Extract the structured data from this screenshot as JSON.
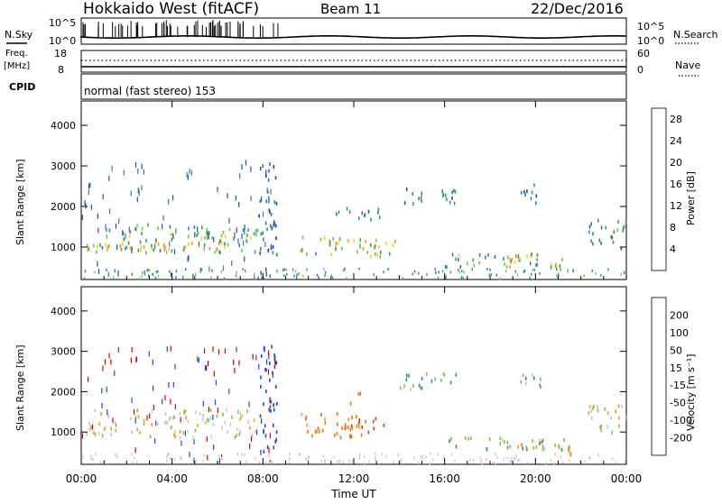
{
  "header": {
    "station": "Hokkaido West (fitACF)",
    "beam": "Beam 11",
    "date": "22/Dec/2016"
  },
  "top_panels": {
    "nsky_label": "N.Sky",
    "nsearch_label": "N.Search",
    "nsky_ticks": [
      "10^5",
      "10^0"
    ],
    "nsearch_ticks": [
      "10^5",
      "10^0"
    ],
    "freq_label_line1": "Freq.",
    "freq_label_line2": "[MHz]",
    "freq_ticks": [
      "18",
      "8"
    ],
    "nave_label": "Nave",
    "nave_ticks": [
      "60",
      "0"
    ],
    "cpid_label": "CPID",
    "cpid_text": "normal (fast stereo) 153"
  },
  "chart_data": [
    {
      "type": "heatmap",
      "name": "power",
      "xlabel": "Time UT",
      "ylabel": "Slant Range [km]",
      "x_ticks": [
        "00:00",
        "04:00",
        "08:00",
        "12:00",
        "16:00",
        "20:00",
        "00:00"
      ],
      "y_ticks": [
        1000,
        2000,
        3000,
        4000
      ],
      "ylim": [
        200,
        4600
      ],
      "xlim_hours": [
        0,
        24
      ],
      "colorbar": {
        "label": "Power [dB]",
        "ticks": [
          4,
          8,
          12,
          16,
          20,
          24,
          28
        ],
        "colors": [
          "#1030ff",
          "#1f4fb0",
          "#3a7aa0",
          "#3a9a70",
          "#7fc050",
          "#f0d020",
          "#f0a020",
          "#f07010",
          "#e04010",
          "#e00000"
        ]
      },
      "regions": [
        {
          "t0": 0.2,
          "t1": 7.8,
          "r0": 900,
          "r1": 1600,
          "level": 12
        },
        {
          "t0": 1.0,
          "t1": 6.5,
          "r0": 950,
          "r1": 1150,
          "level": 18
        },
        {
          "t0": 9.6,
          "t1": 13.8,
          "r0": 800,
          "r1": 1300,
          "level": 14
        },
        {
          "t0": 11.0,
          "t1": 12.5,
          "r0": 1000,
          "r1": 1200,
          "level": 17
        },
        {
          "t0": 11.0,
          "t1": 13.3,
          "r0": 1700,
          "r1": 2000,
          "level": 8
        },
        {
          "t0": 14.0,
          "t1": 16.6,
          "r0": 2100,
          "r1": 2500,
          "level": 8
        },
        {
          "t0": 16.0,
          "t1": 21.5,
          "r0": 550,
          "r1": 900,
          "level": 12
        },
        {
          "t0": 18.6,
          "t1": 20.3,
          "r0": 650,
          "r1": 850,
          "level": 19
        },
        {
          "t0": 20.6,
          "t1": 21.8,
          "r0": 400,
          "r1": 700,
          "level": 13
        },
        {
          "t0": 22.3,
          "t1": 24.0,
          "r0": 1000,
          "r1": 1700,
          "level": 9
        },
        {
          "t0": 19.2,
          "t1": 20.2,
          "r0": 2100,
          "r1": 2600,
          "level": 8
        },
        {
          "t0": 7.8,
          "t1": 8.6,
          "r0": 300,
          "r1": 3200,
          "level": 6
        }
      ]
    },
    {
      "type": "heatmap",
      "name": "velocity",
      "xlabel": "Time UT",
      "ylabel": "Slant Range [km]",
      "x_ticks": [
        "00:00",
        "04:00",
        "08:00",
        "12:00",
        "16:00",
        "20:00",
        "00:00"
      ],
      "y_ticks": [
        1000,
        2000,
        3000,
        4000
      ],
      "ylim": [
        200,
        4600
      ],
      "xlim_hours": [
        0,
        24
      ],
      "colorbar": {
        "label": "Velocity [m s⁻¹]",
        "ticks": [
          200,
          100,
          50,
          15,
          -15,
          -50,
          -100,
          -200
        ],
        "colors": [
          "#2040ff",
          "#1f4fb0",
          "#3a8a70",
          "#7fc050",
          "#c8c8c8",
          "#c8c8c8",
          "#f0a020",
          "#f07010",
          "#e04010",
          "#e00000"
        ]
      },
      "regions": [
        {
          "t0": 0.2,
          "t1": 7.8,
          "r0": 900,
          "r1": 1600,
          "level": 0
        },
        {
          "t0": 9.6,
          "t1": 12.6,
          "r0": 900,
          "r1": 1500,
          "level": -60
        },
        {
          "t0": 11.5,
          "t1": 13.3,
          "r0": 1000,
          "r1": 1400,
          "level": -120
        },
        {
          "t0": 11.8,
          "t1": 12.4,
          "r0": 1750,
          "r1": 2000,
          "level": -80
        },
        {
          "t0": 14.0,
          "t1": 16.6,
          "r0": 2100,
          "r1": 2500,
          "level": 40
        },
        {
          "t0": 16.0,
          "t1": 21.5,
          "r0": 600,
          "r1": 900,
          "level": 40
        },
        {
          "t0": 18.6,
          "t1": 20.3,
          "r0": 650,
          "r1": 850,
          "level": -60
        },
        {
          "t0": 20.6,
          "t1": 21.8,
          "r0": 450,
          "r1": 700,
          "level": -60
        },
        {
          "t0": 22.3,
          "t1": 24.0,
          "r0": 1000,
          "r1": 1700,
          "level": 0
        },
        {
          "t0": 19.2,
          "t1": 20.2,
          "r0": 2100,
          "r1": 2600,
          "level": 30
        },
        {
          "t0": 7.8,
          "t1": 8.6,
          "r0": 300,
          "r1": 3200,
          "level": 150
        }
      ]
    }
  ]
}
